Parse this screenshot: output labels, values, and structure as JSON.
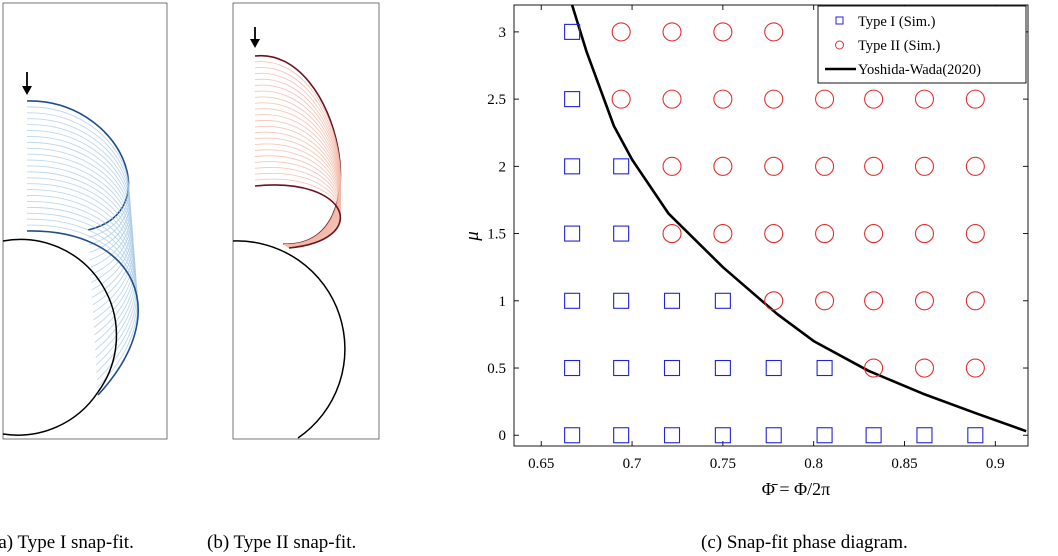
{
  "panels": {
    "a": {
      "caption": "(a) Type I snap-fit.",
      "curve_color": "#1f4e8c",
      "curve_color_light": "#a9c9e6"
    },
    "b": {
      "caption": "(b) Type II snap-fit.",
      "curve_color": "#6b1320",
      "curve_color_light": "#f3b9a7"
    },
    "c": {
      "caption": "(c) Snap-fit phase diagram."
    }
  },
  "chart_data": {
    "type": "scatter",
    "xlabel": "Φ̄ = Φ/2π",
    "ylabel": "μ",
    "xlim": [
      0.635,
      0.918
    ],
    "ylim": [
      -0.08,
      3.2
    ],
    "xticks": [
      0.65,
      0.7,
      0.75,
      0.8,
      0.85,
      0.9
    ],
    "xtick_labels": [
      "0.65",
      "0.7",
      "0.75",
      "0.8",
      "0.85",
      "0.9"
    ],
    "yticks": [
      0,
      0.5,
      1,
      1.5,
      2,
      2.5,
      3
    ],
    "ytick_labels": [
      "0",
      "0.5",
      "1",
      "1.5",
      "2",
      "2.5",
      "3"
    ],
    "grid": false,
    "legend_position": "top-right",
    "series": [
      {
        "name": "Type I (Sim.)",
        "marker": "square",
        "color": "#2323d6",
        "points": [
          [
            0.667,
            3
          ],
          [
            0.667,
            2.5
          ],
          [
            0.667,
            2
          ],
          [
            0.667,
            1.5
          ],
          [
            0.667,
            1
          ],
          [
            0.667,
            0.5
          ],
          [
            0.667,
            0
          ],
          [
            0.694,
            2
          ],
          [
            0.694,
            1.5
          ],
          [
            0.694,
            1
          ],
          [
            0.694,
            0.5
          ],
          [
            0.694,
            0
          ],
          [
            0.722,
            1
          ],
          [
            0.722,
            0.5
          ],
          [
            0.722,
            0
          ],
          [
            0.75,
            1
          ],
          [
            0.75,
            0.5
          ],
          [
            0.75,
            0
          ],
          [
            0.778,
            0.5
          ],
          [
            0.778,
            0
          ],
          [
            0.806,
            0.5
          ],
          [
            0.806,
            0
          ],
          [
            0.833,
            0
          ],
          [
            0.861,
            0
          ],
          [
            0.889,
            0
          ]
        ]
      },
      {
        "name": "Type II (Sim.)",
        "marker": "circle",
        "color": "#e03030",
        "points": [
          [
            0.694,
            3
          ],
          [
            0.694,
            2.5
          ],
          [
            0.722,
            3
          ],
          [
            0.722,
            2.5
          ],
          [
            0.722,
            2
          ],
          [
            0.722,
            1.5
          ],
          [
            0.75,
            3
          ],
          [
            0.75,
            2.5
          ],
          [
            0.75,
            2
          ],
          [
            0.75,
            1.5
          ],
          [
            0.778,
            3
          ],
          [
            0.778,
            2.5
          ],
          [
            0.778,
            2
          ],
          [
            0.778,
            1.5
          ],
          [
            0.778,
            1
          ],
          [
            0.806,
            2.5
          ],
          [
            0.806,
            2
          ],
          [
            0.806,
            1.5
          ],
          [
            0.806,
            1
          ],
          [
            0.833,
            2.5
          ],
          [
            0.833,
            2
          ],
          [
            0.833,
            1.5
          ],
          [
            0.833,
            1
          ],
          [
            0.833,
            0.5
          ],
          [
            0.861,
            2.5
          ],
          [
            0.861,
            2
          ],
          [
            0.861,
            1.5
          ],
          [
            0.861,
            1
          ],
          [
            0.861,
            0.5
          ],
          [
            0.889,
            2.5
          ],
          [
            0.889,
            2
          ],
          [
            0.889,
            1.5
          ],
          [
            0.889,
            1
          ],
          [
            0.889,
            0.5
          ]
        ]
      },
      {
        "name": "Yoshida-Wada(2020)",
        "type": "line",
        "color": "#000000",
        "points": [
          [
            0.667,
            3.25
          ],
          [
            0.675,
            2.85
          ],
          [
            0.69,
            2.3
          ],
          [
            0.7,
            2.05
          ],
          [
            0.72,
            1.65
          ],
          [
            0.75,
            1.25
          ],
          [
            0.78,
            0.9
          ],
          [
            0.8,
            0.7
          ],
          [
            0.83,
            0.48
          ],
          [
            0.86,
            0.31
          ],
          [
            0.89,
            0.16
          ],
          [
            0.917,
            0.03
          ]
        ]
      }
    ]
  }
}
